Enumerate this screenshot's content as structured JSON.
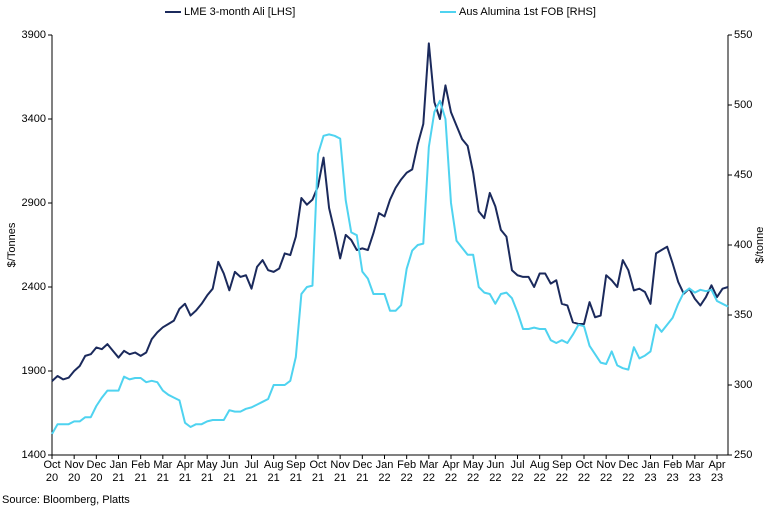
{
  "chart_data": {
    "type": "line",
    "legend_position": "top",
    "grid": false,
    "categories": [
      "Oct\n20",
      null,
      null,
      null,
      "Nov\n20",
      null,
      null,
      null,
      "Dec\n20",
      null,
      null,
      null,
      "Jan\n21",
      null,
      null,
      null,
      "Feb\n21",
      null,
      null,
      null,
      "Mar\n21",
      null,
      null,
      null,
      "Apr\n21",
      null,
      null,
      null,
      "May\n21",
      null,
      null,
      null,
      "Jun\n21",
      null,
      null,
      null,
      "Jul\n21",
      null,
      null,
      null,
      "Aug\n21",
      null,
      null,
      null,
      "Sep\n21",
      null,
      null,
      null,
      "Oct\n21",
      null,
      null,
      null,
      "Nov\n21",
      null,
      null,
      null,
      "Dec\n21",
      null,
      null,
      null,
      "Jan\n22",
      null,
      null,
      null,
      "Feb\n22",
      null,
      null,
      null,
      "Mar\n22",
      null,
      null,
      null,
      "Apr\n22",
      null,
      null,
      null,
      "May\n22",
      null,
      null,
      null,
      "Jun\n22",
      null,
      null,
      null,
      "Jul\n22",
      null,
      null,
      null,
      "Aug\n22",
      null,
      null,
      null,
      "Sep\n22",
      null,
      null,
      null,
      "Oct\n22",
      null,
      null,
      null,
      "Nov\n22",
      null,
      null,
      null,
      "Dec\n22",
      null,
      null,
      null,
      "Jan\n23",
      null,
      null,
      null,
      "Feb\n23",
      null,
      null,
      null,
      "Mar\n23",
      null,
      null,
      null,
      "Apr\n23",
      null,
      null
    ],
    "series": [
      {
        "name": "LME 3-month Ali [LHS]",
        "color": "#1b2a5c",
        "axis": "y",
        "values": [
          1840,
          1870,
          1850,
          1860,
          1900,
          1930,
          1990,
          2000,
          2040,
          2030,
          2060,
          2020,
          1980,
          2020,
          2000,
          2010,
          1990,
          2010,
          2090,
          2130,
          2160,
          2180,
          2200,
          2270,
          2300,
          2230,
          2260,
          2300,
          2350,
          2390,
          2550,
          2480,
          2380,
          2490,
          2460,
          2470,
          2390,
          2520,
          2560,
          2500,
          2490,
          2510,
          2600,
          2590,
          2700,
          2930,
          2890,
          2920,
          3000,
          3170,
          2870,
          2730,
          2570,
          2710,
          2680,
          2620,
          2630,
          2620,
          2720,
          2840,
          2820,
          2920,
          2990,
          3040,
          3080,
          3100,
          3250,
          3370,
          3850,
          3500,
          3400,
          3600,
          3440,
          3360,
          3280,
          3240,
          3080,
          2850,
          2810,
          2960,
          2880,
          2740,
          2700,
          2500,
          2470,
          2460,
          2460,
          2400,
          2480,
          2480,
          2420,
          2440,
          2300,
          2290,
          2190,
          2180,
          2180,
          2310,
          2220,
          2230,
          2470,
          2440,
          2400,
          2560,
          2500,
          2380,
          2390,
          2370,
          2300,
          2600,
          2620,
          2640,
          2540,
          2430,
          2360,
          2390,
          2330,
          2290,
          2340,
          2410,
          2340,
          2390,
          2400
        ]
      },
      {
        "name": "Aus Alumina 1st FOB [RHS]",
        "color": "#4fd3f0",
        "axis": "y2",
        "values": [
          265,
          272,
          272,
          272,
          274,
          274,
          277,
          277,
          285,
          291,
          296,
          296,
          296,
          306,
          304,
          305,
          305,
          302,
          303,
          302,
          296,
          293,
          291,
          289,
          273,
          270,
          272,
          272,
          274,
          275,
          275,
          275,
          282,
          281,
          281,
          283,
          284,
          286,
          288,
          290,
          300,
          300,
          300,
          303,
          320,
          365,
          370,
          371,
          465,
          478,
          479,
          478,
          476,
          432,
          409,
          407,
          381,
          376,
          365,
          365,
          365,
          353,
          353,
          357,
          383,
          396,
          400,
          401,
          470,
          495,
          503,
          490,
          430,
          403,
          398,
          393,
          393,
          370,
          366,
          365,
          358,
          365,
          366,
          362,
          352,
          340,
          340,
          341,
          340,
          340,
          332,
          330,
          332,
          330,
          336,
          343,
          342,
          328,
          322,
          316,
          315,
          324,
          314,
          312,
          311,
          327,
          319,
          321,
          324,
          343,
          338,
          343,
          348,
          358,
          366,
          369,
          366,
          368,
          367,
          368,
          360,
          358,
          356
        ]
      }
    ],
    "y_label": "$/Tonnes",
    "y2_label": "$/tonne",
    "ylim": [
      1400,
      3900
    ],
    "yticks": [
      1400,
      1900,
      2400,
      2900,
      3400,
      3900
    ],
    "y2lim": [
      250,
      550
    ],
    "y2ticks": [
      250,
      300,
      350,
      400,
      450,
      500,
      550
    ],
    "source": "Source: Bloomberg, Platts"
  }
}
